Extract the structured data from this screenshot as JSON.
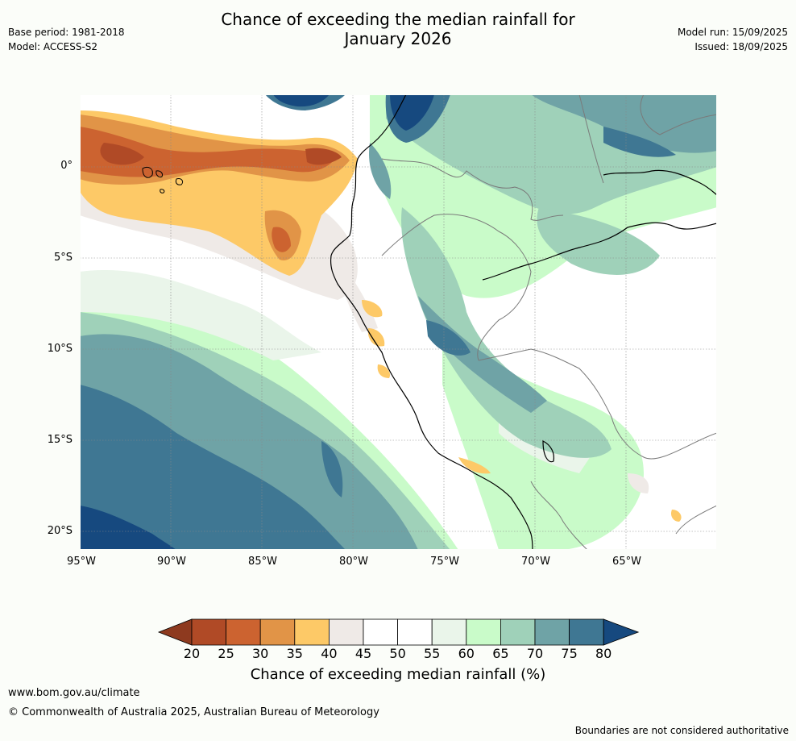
{
  "header": {
    "title_line1": "Chance of exceeding the median rainfall for",
    "title_line2": "January 2026",
    "base_period": "Base period: 1981-2018",
    "model": "Model: ACCESS-S2",
    "model_run": "Model run: 15/09/2025",
    "issued": "Issued: 18/09/2025"
  },
  "map": {
    "lat_labels": [
      "0°",
      "5°S",
      "10°S",
      "15°S",
      "20°S"
    ],
    "lon_labels": [
      "95°W",
      "90°W",
      "85°W",
      "80°W",
      "75°W",
      "70°W",
      "65°W"
    ]
  },
  "colorbar": {
    "label": "Chance of exceeding median rainfall (%)",
    "ticks": [
      "20",
      "25",
      "30",
      "35",
      "40",
      "45",
      "50",
      "55",
      "60",
      "65",
      "70",
      "75",
      "80"
    ],
    "colors": [
      "#8e3a1f",
      "#b04a26",
      "#cc6330",
      "#e19447",
      "#fdc967",
      "#efeae7",
      "#ffffff",
      "#ffffff",
      "#eaf5ea",
      "#c9fbc9",
      "#9fd1b9",
      "#6fa3a6",
      "#3f7793",
      "#16497f"
    ]
  },
  "footer": {
    "url": "www.bom.gov.au/climate",
    "copyright": "© Commonwealth of Australia 2025, Australian Bureau of Meteorology",
    "disclaimer": "Boundaries are not considered authoritative"
  }
}
